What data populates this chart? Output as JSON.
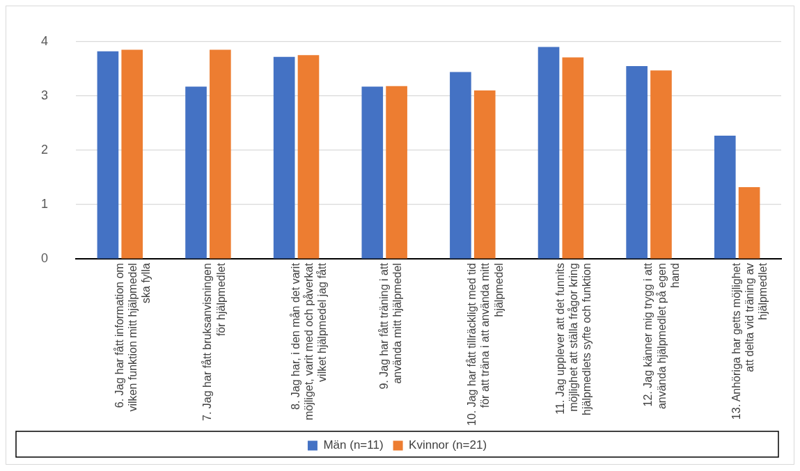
{
  "chart_data": {
    "type": "bar",
    "categories": [
      "6. Jag har fått information om vilken funktion mitt hjälpmedel ska fylla",
      "7. Jag har fått bruksanvisningen för hjälpmedlet",
      "8. Jag har, i den mån det varit möjliget, varit med och påverkat vilket hjälpmedel jag fått",
      "9. Jag har fått träning i att använda mitt hjälpmedel",
      "10. Jag har fått tillräckligt med tid för att träna i att använda mitt hjälpmedel",
      "11. Jag upplever att det funnits möjlighet att ställa frågor kring hjälpmedlets syfte och funktion",
      "12. Jag känner mig trygg i att använda hjälpmedlet på egen hand",
      "13. Anhöriga har getts möjlighet att delta vid träning av hjälpmedlet"
    ],
    "series": [
      {
        "name": "Män (n=11)",
        "color": "#4472c4",
        "values": [
          3.82,
          3.17,
          3.72,
          3.17,
          3.44,
          3.9,
          3.55,
          2.27
        ]
      },
      {
        "name": "Kvinnor (n=21)",
        "color": "#ed7d31",
        "values": [
          3.85,
          3.85,
          3.75,
          3.18,
          3.1,
          3.71,
          3.47,
          1.32
        ]
      }
    ],
    "ylim": [
      0,
      4
    ],
    "yticks": [
      0,
      1,
      2,
      3,
      4
    ],
    "grid": "y",
    "legend": "bottom"
  }
}
